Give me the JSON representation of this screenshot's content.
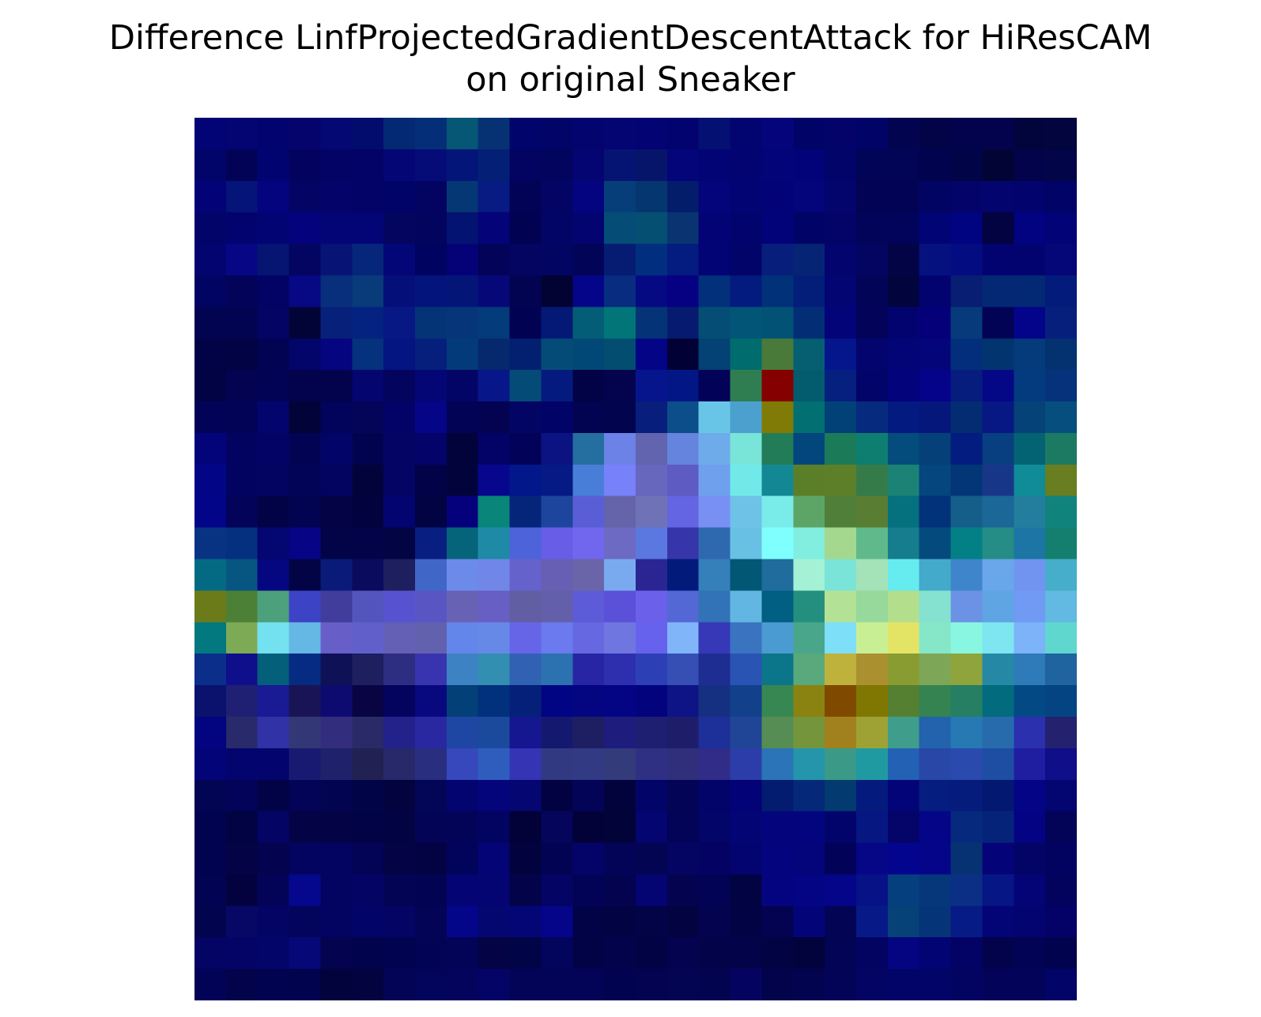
{
  "chart_data": {
    "type": "heatmap",
    "title": "Difference LinfProjectedGradientDescentAttack for HiResCAM\non original Sneaker",
    "grid": false,
    "axes_visible": false,
    "rows": 28,
    "cols": 28,
    "colors": [
      [
        "#020475",
        "#040473",
        "#02036E",
        "#05046C",
        "#030872",
        "#020C6C",
        "#032874",
        "#042F78",
        "#065676",
        "#063273",
        "#01046A",
        "#030468",
        "#03046E",
        "#040472",
        "#030373",
        "#02036E",
        "#051073",
        "#020470",
        "#05047A",
        "#010366",
        "#030369",
        "#010466",
        "#02044F",
        "#030447",
        "#03034D",
        "#02034C",
        "#02043C",
        "#02053E"
      ],
      [
        "#01056A",
        "#020356",
        "#010470",
        "#03035F",
        "#030366",
        "#030367",
        "#030674",
        "#050C78",
        "#031578",
        "#031F76",
        "#030461",
        "#03045E",
        "#040473",
        "#051473",
        "#06146A",
        "#030579",
        "#020475",
        "#030472",
        "#030478",
        "#030379",
        "#030469",
        "#020458",
        "#020455",
        "#02034E",
        "#020448",
        "#020435",
        "#02034A",
        "#020548"
      ],
      [
        "#030377",
        "#041478",
        "#03047E",
        "#030464",
        "#03036A",
        "#030367",
        "#020369",
        "#030462",
        "#043774",
        "#071B82",
        "#020356",
        "#030463",
        "#050480",
        "#053E78",
        "#06366F",
        "#031D6B",
        "#04047B",
        "#020474",
        "#030377",
        "#04047B",
        "#04046D",
        "#030355",
        "#030356",
        "#020464",
        "#030369",
        "#03046D",
        "#02036D",
        "#020366"
      ],
      [
        "#03046A",
        "#02036F",
        "#020474",
        "#04037D",
        "#030475",
        "#030475",
        "#03055F",
        "#03045E",
        "#031371",
        "#040378",
        "#010352",
        "#020565",
        "#030470",
        "#054D76",
        "#054F72",
        "#093471",
        "#030376",
        "#03036E",
        "#020378",
        "#020366",
        "#030368",
        "#020459",
        "#02035B",
        "#010474",
        "#010480",
        "#020340",
        "#020380",
        "#020376"
      ],
      [
        "#03046F",
        "#070786",
        "#051571",
        "#030560",
        "#081376",
        "#06267B",
        "#030676",
        "#010360",
        "#050278",
        "#020359",
        "#030561",
        "#030563",
        "#020458",
        "#061C72",
        "#022E80",
        "#041B80",
        "#020374",
        "#020469",
        "#071E7B",
        "#052574",
        "#03046E",
        "#040561",
        "#020446",
        "#061180",
        "#040C82",
        "#020370",
        "#030370",
        "#050778"
      ],
      [
        "#010462",
        "#020359",
        "#030366",
        "#060884",
        "#072F7C",
        "#093A7A",
        "#040F7A",
        "#03147C",
        "#031678",
        "#070877",
        "#020351",
        "#020332",
        "#050589",
        "#072C80",
        "#060A82",
        "#060083",
        "#02307B",
        "#031A7E",
        "#013178",
        "#031E79",
        "#030573",
        "#020458",
        "#02043D",
        "#030370",
        "#071E73",
        "#042874",
        "#032874",
        "#031B7A"
      ],
      [
        "#020451",
        "#020452",
        "#030463",
        "#020437",
        "#07217B",
        "#042280",
        "#071884",
        "#043476",
        "#06357A",
        "#043B7A",
        "#020253",
        "#041876",
        "#045D76",
        "#027579",
        "#053377",
        "#061B6F",
        "#054D74",
        "#025576",
        "#025276",
        "#032E76",
        "#030478",
        "#020359",
        "#030370",
        "#05007A",
        "#063A7A",
        "#030356",
        "#03048A",
        "#071F7C"
      ],
      [
        "#020346",
        "#020344",
        "#020352",
        "#03056A",
        "#05057F",
        "#06317D",
        "#041582",
        "#061E7C",
        "#033B7A",
        "#05296C",
        "#032070",
        "#044C77",
        "#024877",
        "#024D70",
        "#030486",
        "#020135",
        "#044174",
        "#016C6D",
        "#4A7A39",
        "#065F71",
        "#05158C",
        "#03046D",
        "#030476",
        "#05057A",
        "#022E7C",
        "#023470",
        "#053B7A",
        "#043271"
      ],
      [
        "#020345",
        "#030352",
        "#030356",
        "#02034C",
        "#03034D",
        "#050570",
        "#03045D",
        "#040676",
        "#030566",
        "#071688",
        "#044B78",
        "#041A7E",
        "#020246",
        "#03034E",
        "#07158D",
        "#031685",
        "#020358",
        "#2F7E52",
        "#850000",
        "#025C6D",
        "#05207E",
        "#030469",
        "#03037C",
        "#040389",
        "#071D7E",
        "#050886",
        "#043A7E",
        "#06327B"
      ],
      [
        "#020358",
        "#020356",
        "#03046C",
        "#020338",
        "#02035B",
        "#040459",
        "#030367",
        "#050588",
        "#020355",
        "#030352",
        "#030564",
        "#020367",
        "#020451",
        "#02044E",
        "#071E7C",
        "#0B4E89",
        "#69C5E8",
        "#4CA0CE",
        "#7F7B06",
        "#026F73",
        "#024078",
        "#062A7D",
        "#031A80",
        "#05177B",
        "#032C73",
        "#071885",
        "#044277",
        "#064E7E"
      ],
      [
        "#03047A",
        "#020361",
        "#030366",
        "#030354",
        "#030468",
        "#02034F",
        "#030463",
        "#03036A",
        "#02033A",
        "#030267",
        "#020358",
        "#0A1381",
        "#246F9F",
        "#6C82E6",
        "#6264AF",
        "#6484DD",
        "#6EABEA",
        "#79E4D8",
        "#237C58",
        "#02467C",
        "#1B7B58",
        "#0D7E70",
        "#034C7B",
        "#054078",
        "#021C80",
        "#073F80",
        "#046373",
        "#1C7A63"
      ],
      [
        "#020686",
        "#020360",
        "#030462",
        "#020458",
        "#020460",
        "#02033A",
        "#030463",
        "#020249",
        "#02033B",
        "#06078C",
        "#01178A",
        "#051A84",
        "#497ED8",
        "#7781FA",
        "#6667BD",
        "#5E5BC2",
        "#6EA0ED",
        "#71E9E9",
        "#138894",
        "#5B7F28",
        "#5D7F2A",
        "#357B49",
        "#1C8276",
        "#04467D",
        "#023676",
        "#183688",
        "#0F8C97",
        "#687E20"
      ],
      [
        "#020588",
        "#020359",
        "#020346",
        "#020452",
        "#030345",
        "#02033E",
        "#030470",
        "#010343",
        "#05017C",
        "#098579",
        "#05257A",
        "#1E459E",
        "#5A5ED6",
        "#6563A9",
        "#6F72B6",
        "#6365E2",
        "#7890F3",
        "#6EC1E7",
        "#79ECEA",
        "#5DA566",
        "#4F7F39",
        "#587D33",
        "#05707E",
        "#01327A",
        "#165E8A",
        "#1B6798",
        "#237E9E",
        "#11837D"
      ],
      [
        "#083382",
        "#053080",
        "#040671",
        "#070585",
        "#030448",
        "#020349",
        "#020443",
        "#081E81",
        "#05637A",
        "#1F8AA6",
        "#4D63DA",
        "#675DE6",
        "#7166EE",
        "#6C6AC3",
        "#5B78E0",
        "#3635A9",
        "#2E69AF",
        "#68C1E4",
        "#80FFFF",
        "#81EEDF",
        "#A4D88E",
        "#5FB98A",
        "#157D8D",
        "#054A7C",
        "#038086",
        "#258C86",
        "#1C75A4",
        "#157F6F"
      ],
      [
        "#046A83",
        "#075581",
        "#04077F",
        "#030445",
        "#0A1A79",
        "#0A0B5D",
        "#1E1F5E",
        "#4066C8",
        "#6C8AEA",
        "#7187E8",
        "#6562CB",
        "#665FB4",
        "#6A65A8",
        "#79AAF0",
        "#2A2593",
        "#021A79",
        "#357FBA",
        "#025774",
        "#1F6C9D",
        "#A4F1D5",
        "#79E4D7",
        "#A4E3B7",
        "#66ECEE",
        "#43AACB",
        "#3F85CB",
        "#69A6EA",
        "#7094F0",
        "#46ADCB"
      ],
      [
        "#6C7B19",
        "#4C8036",
        "#4CA07C",
        "#3C43C4",
        "#403D9C",
        "#5455BC",
        "#5752CF",
        "#5956C4",
        "#6862B5",
        "#675FC3",
        "#625EA4",
        "#635FAA",
        "#5D5BD7",
        "#5B51D8",
        "#6A60EA",
        "#5468D5",
        "#3272B6",
        "#62B7E2",
        "#005F83",
        "#248F7E",
        "#B3E296",
        "#97D89B",
        "#B3DE8C",
        "#85E2D1",
        "#6B92E5",
        "#5FA4E3",
        "#709AF3",
        "#62B9E2"
      ],
      [
        "#02787F",
        "#7DAA55",
        "#74E1F1",
        "#65B7E4",
        "#675EC8",
        "#6160CB",
        "#6360B5",
        "#6261AE",
        "#6286E9",
        "#6689E8",
        "#6665E8",
        "#6B7AEE",
        "#6568E0",
        "#6F76E0",
        "#6662ED",
        "#80B5FA",
        "#3638B8",
        "#3A73C0",
        "#4A9BD1",
        "#49A68B",
        "#7EDFF9",
        "#C9EF95",
        "#E3E466",
        "#85E7C7",
        "#88F6E1",
        "#7DE6F0",
        "#7CB3F9",
        "#5FD7CF"
      ],
      [
        "#0A2E8A",
        "#100F8B",
        "#035F7A",
        "#052C82",
        "#0F1157",
        "#1D1F5F",
        "#2D2D82",
        "#3834B0",
        "#3D82C2",
        "#328FB2",
        "#3161B3",
        "#2C72B0",
        "#2725A3",
        "#2D2FAF",
        "#2D3FB5",
        "#354FB4",
        "#1D2D92",
        "#2954B4",
        "#0B7589",
        "#59A97C",
        "#BEB23C",
        "#AB9030",
        "#899C31",
        "#7DA656",
        "#90A43D",
        "#2589A5",
        "#2F7AB9",
        "#1F649F"
      ],
      [
        "#0A126D",
        "#1F2073",
        "#191B94",
        "#191455",
        "#0D0B70",
        "#090542",
        "#04045E",
        "#08087F",
        "#034077",
        "#01317C",
        "#052078",
        "#020583",
        "#030680",
        "#040584",
        "#03047D",
        "#0E1485",
        "#163081",
        "#12408B",
        "#378753",
        "#8A8311",
        "#804900",
        "#807702",
        "#558032",
        "#348350",
        "#267F63",
        "#026B7E",
        "#034A85",
        "#054483"
      ],
      [
        "#03047F",
        "#292A6B",
        "#3132A6",
        "#333775",
        "#322E7D",
        "#292A67",
        "#22228A",
        "#2928A1",
        "#1E47A3",
        "#1B4A9C",
        "#141790",
        "#15186F",
        "#1E1E62",
        "#1E1C7D",
        "#1F1F72",
        "#1E1D6A",
        "#1D2F98",
        "#204596",
        "#568D54",
        "#74953B",
        "#A0811E",
        "#9EA234",
        "#3F9E8B",
        "#2362AD",
        "#2679B2",
        "#276BAD",
        "#2B30AF",
        "#24226F"
      ],
      [
        "#030477",
        "#03046E",
        "#03046C",
        "#181A72",
        "#1F226A",
        "#212153",
        "#28296B",
        "#2A2E7F",
        "#3648BB",
        "#2F5DBD",
        "#3534B4",
        "#313A80",
        "#313A82",
        "#333B7B",
        "#2F2F84",
        "#302F7C",
        "#312C88",
        "#2C3DA9",
        "#2A74B7",
        "#2495AA",
        "#3A9A87",
        "#1F9AA1",
        "#2361B5",
        "#2847A6",
        "#2A4BAD",
        "#1E4EA4",
        "#1F1EA1",
        "#100E88"
      ],
      [
        "#020454",
        "#020359",
        "#020347",
        "#030357",
        "#020451",
        "#020448",
        "#02033F",
        "#030557",
        "#040471",
        "#04047B",
        "#050672",
        "#020243",
        "#030458",
        "#02033C",
        "#030467",
        "#030456",
        "#020469",
        "#040277",
        "#041C6F",
        "#052878",
        "#033A6F",
        "#041A7C",
        "#030478",
        "#051D7F",
        "#051C7C",
        "#031871",
        "#040486",
        "#030570"
      ],
      [
        "#020350",
        "#020342",
        "#040465",
        "#030346",
        "#030345",
        "#020346",
        "#020342",
        "#030455",
        "#030457",
        "#030461",
        "#020238",
        "#04055B",
        "#020238",
        "#020338",
        "#040571",
        "#030357",
        "#030568",
        "#030575",
        "#04057C",
        "#03057F",
        "#03046B",
        "#071782",
        "#040469",
        "#050588",
        "#06297D",
        "#06237A",
        "#030384",
        "#030358"
      ],
      [
        "#020350",
        "#030346",
        "#030350",
        "#030460",
        "#030461",
        "#030455",
        "#030345",
        "#030243",
        "#02035B",
        "#040476",
        "#02033E",
        "#030353",
        "#040468",
        "#030457",
        "#030452",
        "#040463",
        "#040364",
        "#030470",
        "#04047E",
        "#04047B",
        "#020358",
        "#050787",
        "#04058E",
        "#05058A",
        "#063274",
        "#040478",
        "#030466",
        "#020361"
      ],
      [
        "#020353",
        "#03023F",
        "#030458",
        "#05078D",
        "#030462",
        "#030463",
        "#030454",
        "#020453",
        "#040475",
        "#040473",
        "#020349",
        "#030463",
        "#020356",
        "#030350",
        "#040472",
        "#030350",
        "#030356",
        "#020342",
        "#050480",
        "#040584",
        "#040589",
        "#061285",
        "#053F7E",
        "#05377A",
        "#0B2F84",
        "#061684",
        "#040476",
        "#03035E"
      ],
      [
        "#03044E",
        "#070865",
        "#030464",
        "#03045C",
        "#030461",
        "#030467",
        "#040465",
        "#030456",
        "#04068A",
        "#050771",
        "#050676",
        "#050589",
        "#020346",
        "#020343",
        "#030348",
        "#020340",
        "#030350",
        "#020345",
        "#030352",
        "#040479",
        "#030453",
        "#071987",
        "#064277",
        "#063478",
        "#061B85",
        "#030476",
        "#040470",
        "#040266"
      ],
      [
        "#030464",
        "#040466",
        "#040569",
        "#060877",
        "#030350",
        "#02034D",
        "#020350",
        "#030355",
        "#030458",
        "#030346",
        "#020448",
        "#03045C",
        "#020346",
        "#02034A",
        "#020345",
        "#030350",
        "#020349",
        "#03034A",
        "#020343",
        "#02033D",
        "#030455",
        "#030362",
        "#050581",
        "#030473",
        "#030366",
        "#02034B",
        "#030356",
        "#02034E"
      ],
      [
        "#020356",
        "#02034A",
        "#020350",
        "#02034E",
        "#02033D",
        "#02033F",
        "#030456",
        "#03055C",
        "#04045D",
        "#030465",
        "#030357",
        "#030357",
        "#030457",
        "#020350",
        "#030352",
        "#030452",
        "#030450",
        "#040460",
        "#02034A",
        "#03044F",
        "#030458",
        "#040464",
        "#030467",
        "#030467",
        "#030461",
        "#030459",
        "#030459",
        "#030467"
      ]
    ]
  }
}
